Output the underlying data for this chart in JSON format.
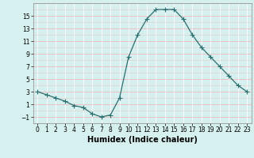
{
  "x": [
    0,
    1,
    2,
    3,
    4,
    5,
    6,
    7,
    8,
    9,
    10,
    11,
    12,
    13,
    14,
    15,
    16,
    17,
    18,
    19,
    20,
    21,
    22,
    23
  ],
  "y": [
    3,
    2.5,
    2,
    1.5,
    0.8,
    0.5,
    -0.5,
    -1,
    -0.7,
    2,
    8.5,
    12,
    14.5,
    16,
    16,
    16,
    14.5,
    12,
    10,
    8.5,
    7,
    5.5,
    4,
    3
  ],
  "line_color": "#2d6e6e",
  "marker": "+",
  "marker_size": 4,
  "bg_color": "#d6efef",
  "grid_color_white": "#ffffff",
  "grid_color_pink": "#f0b8b8",
  "xlabel": "Humidex (Indice chaleur)",
  "xlim": [
    -0.5,
    23.5
  ],
  "ylim": [
    -2,
    17
  ],
  "yticks": [
    -1,
    1,
    3,
    5,
    7,
    9,
    11,
    13,
    15
  ],
  "xticks": [
    0,
    1,
    2,
    3,
    4,
    5,
    6,
    7,
    8,
    9,
    10,
    11,
    12,
    13,
    14,
    15,
    16,
    17,
    18,
    19,
    20,
    21,
    22,
    23
  ],
  "tick_fontsize": 5.5,
  "label_fontsize": 7
}
